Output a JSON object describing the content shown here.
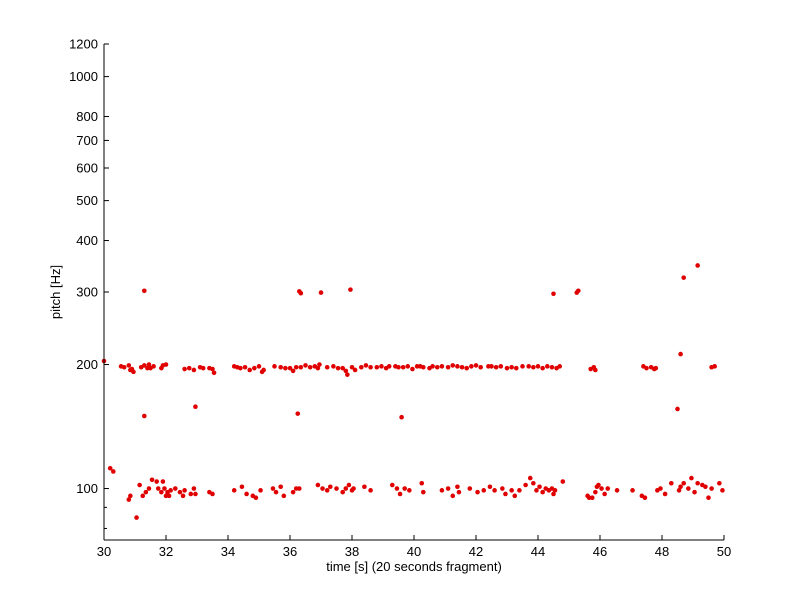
{
  "chart_data": {
    "type": "scatter",
    "title": "",
    "xlabel": "time [s] (20 seconds fragment)",
    "ylabel": "pitch [Hz]",
    "xlim": [
      30,
      50
    ],
    "ylim": [
      75,
      1200
    ],
    "yscale": "log",
    "grid": false,
    "marker_color": "#e00000",
    "xticks": [
      30,
      32,
      34,
      36,
      38,
      40,
      42,
      44,
      46,
      48,
      50
    ],
    "yticks_labeled": [
      100,
      200,
      300,
      400,
      500,
      600,
      700,
      800,
      1000,
      1200
    ],
    "yticks_minor": [
      80,
      90
    ],
    "series": [
      {
        "points": [
          [
            30.0,
            204
          ],
          [
            30.2,
            112
          ],
          [
            30.3,
            110
          ],
          [
            30.55,
            198
          ],
          [
            30.65,
            197
          ],
          [
            30.8,
            199
          ],
          [
            30.85,
            194
          ],
          [
            30.9,
            195
          ],
          [
            30.95,
            192
          ],
          [
            31.2,
            197
          ],
          [
            31.3,
            199
          ],
          [
            31.4,
            196
          ],
          [
            31.45,
            200
          ],
          [
            31.5,
            196
          ],
          [
            31.6,
            198
          ],
          [
            31.85,
            196
          ],
          [
            31.9,
            199
          ],
          [
            32.0,
            200
          ],
          [
            32.6,
            195
          ],
          [
            32.75,
            196
          ],
          [
            32.9,
            194
          ],
          [
            33.1,
            197
          ],
          [
            33.2,
            196
          ],
          [
            33.4,
            196
          ],
          [
            33.5,
            195
          ],
          [
            33.55,
            191
          ],
          [
            34.2,
            198
          ],
          [
            34.3,
            197
          ],
          [
            34.4,
            196
          ],
          [
            34.55,
            197
          ],
          [
            34.7,
            194
          ],
          [
            34.85,
            196
          ],
          [
            35.0,
            198
          ],
          [
            35.1,
            192
          ],
          [
            35.15,
            194
          ],
          [
            35.5,
            198
          ],
          [
            35.7,
            197
          ],
          [
            35.85,
            196
          ],
          [
            36.0,
            196
          ],
          [
            36.1,
            193
          ],
          [
            36.2,
            197
          ],
          [
            36.35,
            197
          ],
          [
            36.5,
            199
          ],
          [
            36.65,
            197
          ],
          [
            36.8,
            198
          ],
          [
            36.9,
            196
          ],
          [
            36.95,
            200
          ],
          [
            37.2,
            197
          ],
          [
            37.4,
            198
          ],
          [
            37.55,
            196
          ],
          [
            37.7,
            196
          ],
          [
            37.8,
            193
          ],
          [
            37.85,
            189
          ],
          [
            38.0,
            197
          ],
          [
            38.1,
            194
          ],
          [
            38.3,
            197
          ],
          [
            38.45,
            199
          ],
          [
            38.6,
            197
          ],
          [
            38.8,
            197
          ],
          [
            38.95,
            198
          ],
          [
            39.1,
            196
          ],
          [
            39.2,
            198
          ],
          [
            39.4,
            198
          ],
          [
            39.5,
            197
          ],
          [
            39.65,
            197
          ],
          [
            39.8,
            198
          ],
          [
            39.95,
            195
          ],
          [
            40.1,
            198
          ],
          [
            40.2,
            198
          ],
          [
            40.3,
            197
          ],
          [
            40.5,
            196
          ],
          [
            40.6,
            198
          ],
          [
            40.75,
            197
          ],
          [
            40.9,
            198
          ],
          [
            41.1,
            197
          ],
          [
            41.25,
            199
          ],
          [
            41.4,
            198
          ],
          [
            41.55,
            197
          ],
          [
            41.7,
            196
          ],
          [
            41.85,
            198
          ],
          [
            42.0,
            199
          ],
          [
            42.15,
            197
          ],
          [
            42.4,
            198
          ],
          [
            42.5,
            198
          ],
          [
            42.65,
            197
          ],
          [
            42.8,
            198
          ],
          [
            43.0,
            196
          ],
          [
            43.15,
            197
          ],
          [
            43.3,
            196
          ],
          [
            43.5,
            198
          ],
          [
            43.7,
            198
          ],
          [
            43.85,
            197
          ],
          [
            44.0,
            198
          ],
          [
            44.15,
            196
          ],
          [
            44.3,
            198
          ],
          [
            44.45,
            197
          ],
          [
            44.6,
            196
          ],
          [
            44.7,
            198
          ],
          [
            45.7,
            195
          ],
          [
            45.8,
            197
          ],
          [
            45.85,
            194
          ],
          [
            47.4,
            198
          ],
          [
            47.5,
            196
          ],
          [
            47.65,
            197
          ],
          [
            47.75,
            195
          ],
          [
            47.8,
            196
          ],
          [
            48.6,
            212
          ],
          [
            49.6,
            197
          ],
          [
            49.7,
            198
          ],
          [
            31.3,
            150
          ],
          [
            32.95,
            158
          ],
          [
            36.25,
            152
          ],
          [
            39.6,
            149
          ],
          [
            48.5,
            156
          ],
          [
            31.3,
            302
          ],
          [
            36.3,
            301
          ],
          [
            36.35,
            298
          ],
          [
            37.0,
            299
          ],
          [
            37.95,
            304
          ],
          [
            44.5,
            297
          ],
          [
            45.25,
            299
          ],
          [
            45.3,
            302
          ],
          [
            48.7,
            325
          ],
          [
            49.15,
            348
          ],
          [
            30.8,
            94
          ],
          [
            30.85,
            96
          ],
          [
            31.05,
            85
          ],
          [
            31.15,
            102
          ],
          [
            31.25,
            96
          ],
          [
            31.35,
            98
          ],
          [
            31.45,
            100
          ],
          [
            31.55,
            105
          ],
          [
            31.7,
            104
          ],
          [
            31.75,
            100
          ],
          [
            31.85,
            98
          ],
          [
            31.9,
            104
          ],
          [
            31.95,
            100
          ],
          [
            32.0,
            96
          ],
          [
            32.05,
            98
          ],
          [
            32.1,
            96
          ],
          [
            32.15,
            99
          ],
          [
            32.3,
            100
          ],
          [
            32.45,
            98
          ],
          [
            32.55,
            96
          ],
          [
            32.6,
            99
          ],
          [
            32.8,
            97
          ],
          [
            32.9,
            100
          ],
          [
            32.95,
            97
          ],
          [
            33.4,
            98
          ],
          [
            33.5,
            97
          ],
          [
            34.2,
            99
          ],
          [
            34.45,
            101
          ],
          [
            34.6,
            97
          ],
          [
            34.8,
            96
          ],
          [
            34.9,
            95
          ],
          [
            35.05,
            99
          ],
          [
            35.45,
            100
          ],
          [
            35.55,
            98
          ],
          [
            35.7,
            101
          ],
          [
            35.8,
            96
          ],
          [
            36.1,
            98
          ],
          [
            36.2,
            100
          ],
          [
            36.3,
            100
          ],
          [
            36.9,
            102
          ],
          [
            37.05,
            100
          ],
          [
            37.2,
            99
          ],
          [
            37.3,
            101
          ],
          [
            37.5,
            100
          ],
          [
            37.7,
            98
          ],
          [
            37.8,
            100
          ],
          [
            37.9,
            102
          ],
          [
            38.0,
            99
          ],
          [
            38.05,
            100
          ],
          [
            38.4,
            101
          ],
          [
            38.6,
            99
          ],
          [
            39.3,
            102
          ],
          [
            39.45,
            100
          ],
          [
            39.55,
            97
          ],
          [
            39.7,
            100
          ],
          [
            39.85,
            99
          ],
          [
            40.25,
            103
          ],
          [
            40.3,
            98
          ],
          [
            40.9,
            99
          ],
          [
            41.1,
            100
          ],
          [
            41.25,
            96
          ],
          [
            41.4,
            101
          ],
          [
            41.45,
            98
          ],
          [
            41.8,
            100
          ],
          [
            42.05,
            98
          ],
          [
            42.25,
            99
          ],
          [
            42.45,
            101
          ],
          [
            42.6,
            99
          ],
          [
            42.85,
            100
          ],
          [
            42.95,
            97
          ],
          [
            43.15,
            99
          ],
          [
            43.25,
            96
          ],
          [
            43.4,
            99
          ],
          [
            43.6,
            102
          ],
          [
            43.75,
            106
          ],
          [
            43.85,
            103
          ],
          [
            43.95,
            99
          ],
          [
            44.05,
            101
          ],
          [
            44.15,
            98
          ],
          [
            44.25,
            100
          ],
          [
            44.35,
            99
          ],
          [
            44.45,
            100
          ],
          [
            44.5,
            97
          ],
          [
            44.55,
            99
          ],
          [
            44.8,
            104
          ],
          [
            45.6,
            96
          ],
          [
            45.65,
            95
          ],
          [
            45.75,
            95
          ],
          [
            45.85,
            98
          ],
          [
            45.9,
            101
          ],
          [
            45.95,
            102
          ],
          [
            46.05,
            100
          ],
          [
            46.15,
            97
          ],
          [
            46.25,
            100
          ],
          [
            46.55,
            99
          ],
          [
            47.05,
            99
          ],
          [
            47.35,
            96
          ],
          [
            47.45,
            95
          ],
          [
            47.85,
            99
          ],
          [
            47.95,
            100
          ],
          [
            48.1,
            97
          ],
          [
            48.3,
            103
          ],
          [
            48.55,
            99
          ],
          [
            48.6,
            101
          ],
          [
            48.7,
            103
          ],
          [
            48.85,
            100
          ],
          [
            48.95,
            106
          ],
          [
            49.05,
            98
          ],
          [
            49.15,
            103
          ],
          [
            49.3,
            102
          ],
          [
            49.4,
            101
          ],
          [
            49.5,
            95
          ],
          [
            49.6,
            100
          ],
          [
            49.85,
            103
          ],
          [
            49.95,
            99
          ]
        ]
      }
    ]
  }
}
